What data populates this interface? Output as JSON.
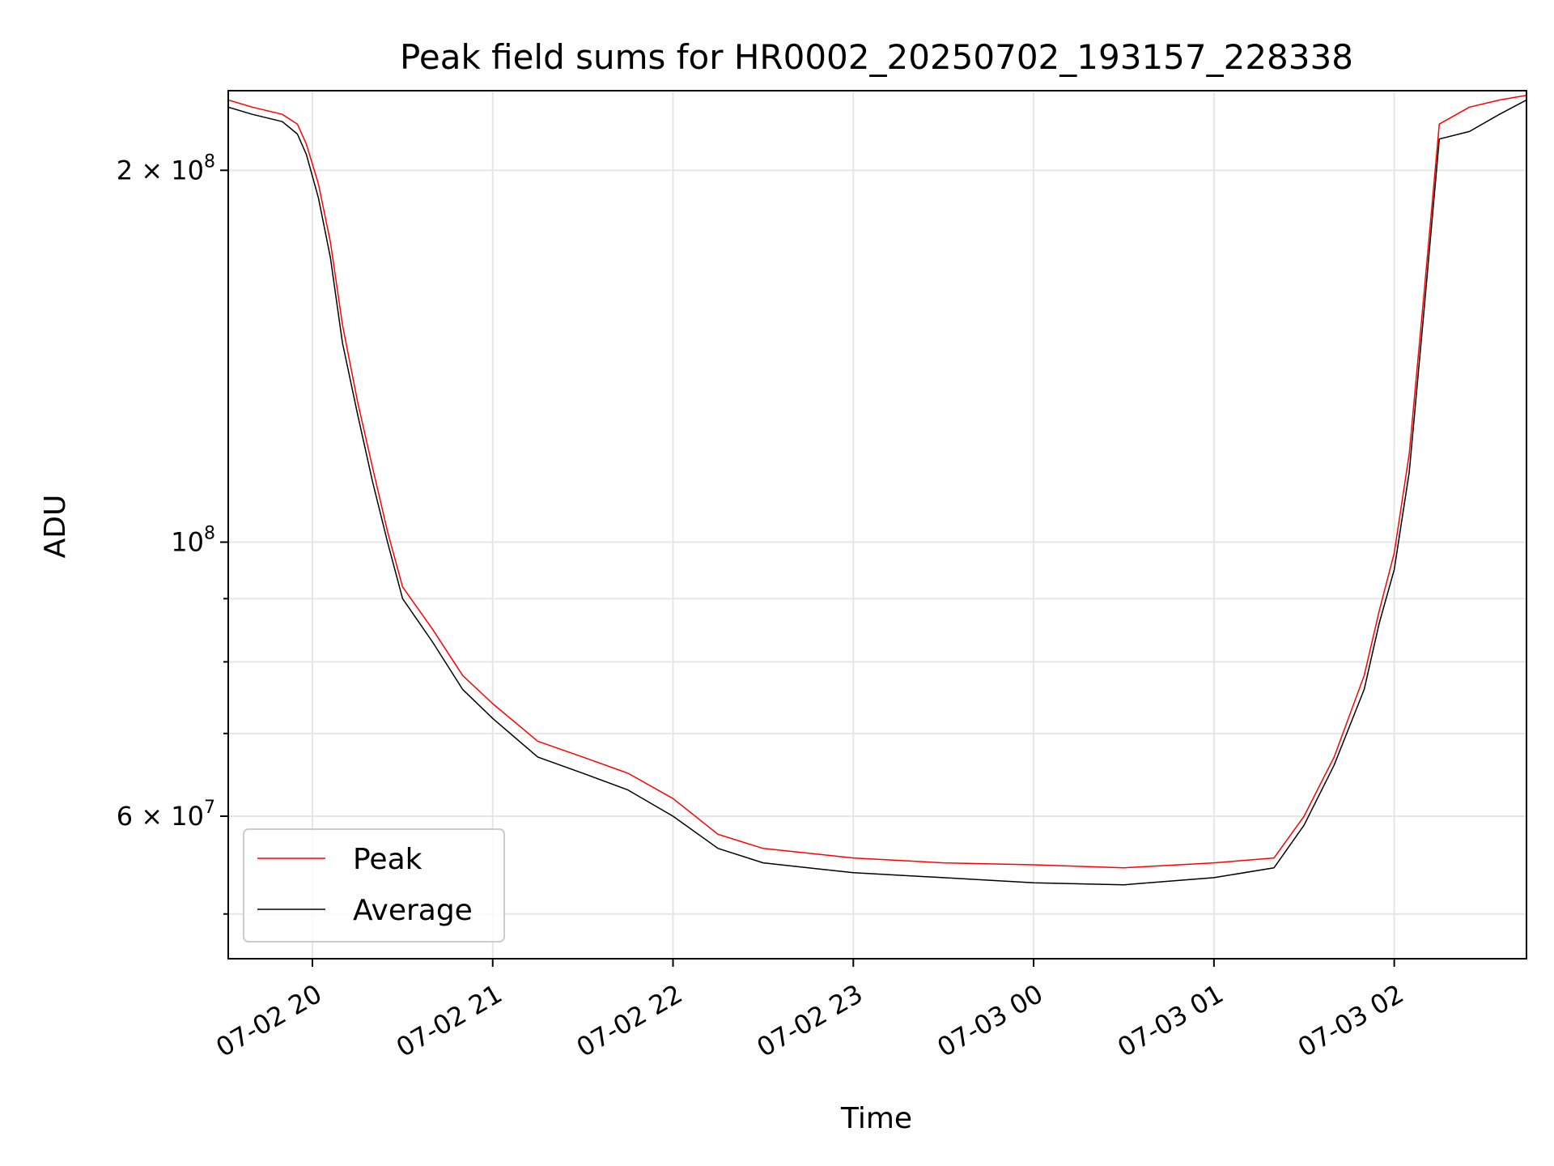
{
  "chart_data": {
    "type": "line",
    "title": "Peak field sums for HR0002_20250702_193157_228338",
    "xlabel": "Time",
    "ylabel": "ADU",
    "yscale": "log",
    "ylim": [
      46000000,
      232000000
    ],
    "xlim": [
      "2025-07-02 19:32",
      "2025-07-03 02:44"
    ],
    "grid": true,
    "legend_position": "lower-left",
    "x_ticks": [
      {
        "value": "2025-07-02 20:00",
        "label": "07-02 20"
      },
      {
        "value": "2025-07-02 21:00",
        "label": "07-02 21"
      },
      {
        "value": "2025-07-02 22:00",
        "label": "07-02 22"
      },
      {
        "value": "2025-07-02 23:00",
        "label": "07-02 23"
      },
      {
        "value": "2025-07-03 00:00",
        "label": "07-03 00"
      },
      {
        "value": "2025-07-03 01:00",
        "label": "07-03 01"
      },
      {
        "value": "2025-07-03 02:00",
        "label": "07-03 02"
      }
    ],
    "y_major_ticks": [
      {
        "value": 60000000,
        "mantissa": "6",
        "exponent": "7"
      },
      {
        "value": 100000000,
        "mantissa": "",
        "exponent": "8"
      },
      {
        "value": 200000000,
        "mantissa": "2",
        "exponent": "8"
      }
    ],
    "y_minor_ticks": [
      50000000,
      70000000,
      80000000,
      90000000
    ],
    "series": [
      {
        "name": "Peak",
        "color": "#ff0000",
        "x": [
          "2025-07-02 19:32",
          "2025-07-02 19:40",
          "2025-07-02 19:50",
          "2025-07-02 19:55",
          "2025-07-02 19:58",
          "2025-07-02 20:02",
          "2025-07-02 20:06",
          "2025-07-02 20:10",
          "2025-07-02 20:15",
          "2025-07-02 20:20",
          "2025-07-02 20:25",
          "2025-07-02 20:30",
          "2025-07-02 20:40",
          "2025-07-02 20:50",
          "2025-07-02 21:00",
          "2025-07-02 21:15",
          "2025-07-02 21:30",
          "2025-07-02 21:45",
          "2025-07-02 22:00",
          "2025-07-02 22:15",
          "2025-07-02 22:30",
          "2025-07-02 23:00",
          "2025-07-02 23:30",
          "2025-07-03 00:00",
          "2025-07-03 00:30",
          "2025-07-03 01:00",
          "2025-07-03 01:20",
          "2025-07-03 01:30",
          "2025-07-03 01:40",
          "2025-07-03 01:50",
          "2025-07-03 01:55",
          "2025-07-03 02:00",
          "2025-07-03 02:05",
          "2025-07-03 02:10",
          "2025-07-03 02:15",
          "2025-07-03 02:25",
          "2025-07-03 02:35",
          "2025-07-03 02:44"
        ],
        "y": [
          228000000,
          225000000,
          222000000,
          218000000,
          210000000,
          195000000,
          175000000,
          150000000,
          130000000,
          115000000,
          102000000,
          92000000,
          85000000,
          78000000,
          74000000,
          69000000,
          67000000,
          65000000,
          62000000,
          58000000,
          56500000,
          55500000,
          55000000,
          54800000,
          54500000,
          55000000,
          55500000,
          60000000,
          67000000,
          78000000,
          88000000,
          98000000,
          118000000,
          160000000,
          218000000,
          225000000,
          228000000,
          230000000
        ]
      },
      {
        "name": "Average",
        "color": "#000000",
        "x": [
          "2025-07-02 19:32",
          "2025-07-02 19:40",
          "2025-07-02 19:50",
          "2025-07-02 19:55",
          "2025-07-02 19:58",
          "2025-07-02 20:02",
          "2025-07-02 20:06",
          "2025-07-02 20:10",
          "2025-07-02 20:15",
          "2025-07-02 20:20",
          "2025-07-02 20:25",
          "2025-07-02 20:30",
          "2025-07-02 20:40",
          "2025-07-02 20:50",
          "2025-07-02 21:00",
          "2025-07-02 21:15",
          "2025-07-02 21:30",
          "2025-07-02 21:45",
          "2025-07-02 22:00",
          "2025-07-02 22:15",
          "2025-07-02 22:30",
          "2025-07-02 23:00",
          "2025-07-02 23:30",
          "2025-07-03 00:00",
          "2025-07-03 00:30",
          "2025-07-03 01:00",
          "2025-07-03 01:20",
          "2025-07-03 01:30",
          "2025-07-03 01:40",
          "2025-07-03 01:50",
          "2025-07-03 01:55",
          "2025-07-03 02:00",
          "2025-07-03 02:05",
          "2025-07-03 02:10",
          "2025-07-03 02:15",
          "2025-07-03 02:25",
          "2025-07-03 02:35",
          "2025-07-03 02:44"
        ],
        "y": [
          225000000,
          222000000,
          219000000,
          214000000,
          206000000,
          190000000,
          170000000,
          145000000,
          127000000,
          112000000,
          100000000,
          90000000,
          83000000,
          76000000,
          72000000,
          67000000,
          65000000,
          63000000,
          60000000,
          56500000,
          55000000,
          54000000,
          53500000,
          53000000,
          52800000,
          53500000,
          54500000,
          59000000,
          66000000,
          76000000,
          86000000,
          95000000,
          114000000,
          155000000,
          212000000,
          215000000,
          222000000,
          228000000
        ]
      }
    ]
  }
}
